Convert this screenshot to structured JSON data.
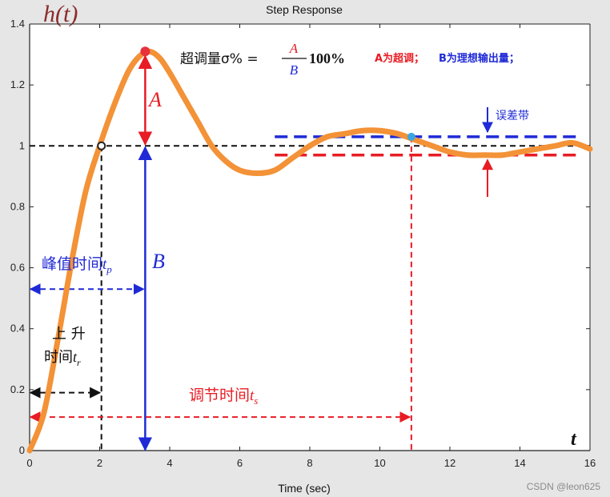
{
  "chart_data": {
    "type": "line",
    "title": "Step Response",
    "xlabel": "Time (sec)",
    "ylabel": "h(t)",
    "x_axis_symbol": "t",
    "xlim": [
      0,
      16
    ],
    "ylim": [
      0,
      1.4
    ],
    "xticks": [
      0,
      2,
      4,
      6,
      8,
      10,
      12,
      14,
      16
    ],
    "yticks": [
      0,
      0.2,
      0.4,
      0.6,
      0.8,
      1,
      1.2,
      1.4
    ],
    "xtick_labels": [
      "0",
      "2",
      "4",
      "6",
      "8",
      "10",
      "12",
      "14",
      "16"
    ],
    "ytick_labels": [
      "0",
      "0.2",
      "0.4",
      "0.6",
      "0.8",
      "1",
      "1.2",
      "1.4"
    ],
    "grid": false,
    "series": [
      {
        "color": "#f39237",
        "x": [
          0,
          0.4,
          0.8,
          1.2,
          1.6,
          2.0,
          2.4,
          2.8,
          3.1,
          3.4,
          3.7,
          4.0,
          4.4,
          4.8,
          5.2,
          5.6,
          6.0,
          6.5,
          7.0,
          7.5,
          8.0,
          8.5,
          9.0,
          9.5,
          10.0,
          10.5,
          11.0,
          11.5,
          12.0,
          12.5,
          13.0,
          13.5,
          14.0,
          14.5,
          15.0,
          15.5,
          16.0
        ],
        "y": [
          0,
          0.12,
          0.36,
          0.62,
          0.85,
          1.0,
          1.13,
          1.24,
          1.29,
          1.31,
          1.29,
          1.24,
          1.16,
          1.08,
          1.0,
          0.95,
          0.92,
          0.91,
          0.92,
          0.96,
          1.0,
          1.03,
          1.04,
          1.05,
          1.05,
          1.04,
          1.02,
          1.0,
          0.98,
          0.97,
          0.97,
          0.97,
          0.98,
          0.99,
          1.0,
          1.01,
          0.99
        ]
      }
    ],
    "markers": {
      "peak": {
        "x": 3.3,
        "y": 1.31,
        "color": "#e8323c"
      },
      "rise_point": {
        "x": 2.05,
        "y": 1.0,
        "color": "#222222"
      },
      "settling_point": {
        "x": 10.9,
        "y": 1.03,
        "color": "#3ba5e0"
      }
    },
    "reference": {
      "steady_state": 1.0,
      "tolerance_band_upper": 1.03,
      "tolerance_band_lower": 0.97,
      "tolerance_band_x_start": 7.0,
      "rise_time": 2.05,
      "peak_time": 3.3,
      "settling_time": 10.9,
      "tp_arrow_y": 0.53,
      "tr_arrow_y": 0.19,
      "ts_arrow_y": 0.11
    },
    "colors": {
      "overshoot": "#e81c24",
      "steady": "#1f2ad6",
      "black_dash": "#111111",
      "settling": "#e81c24"
    }
  },
  "annotations": {
    "overshoot_formula_prefix": "超调量σ% =",
    "formula_numerator": "A",
    "formula_denominator": "B",
    "formula_suffix": "100%",
    "legend_a": "A为超调；",
    "legend_b": "B为理想输出量；",
    "label_A": "A",
    "label_B": "B",
    "error_band_label": "误差带",
    "peak_time_label": "峰值时间",
    "peak_time_symbol": "t",
    "peak_time_sub": "p",
    "rise_time_label_1": "上 升",
    "rise_time_label_2": "时间",
    "rise_time_symbol": "t",
    "rise_time_sub": "r",
    "settling_time_label": "调节时间",
    "settling_time_symbol": "t",
    "settling_time_sub": "s"
  },
  "watermark": "CSDN @leon625"
}
